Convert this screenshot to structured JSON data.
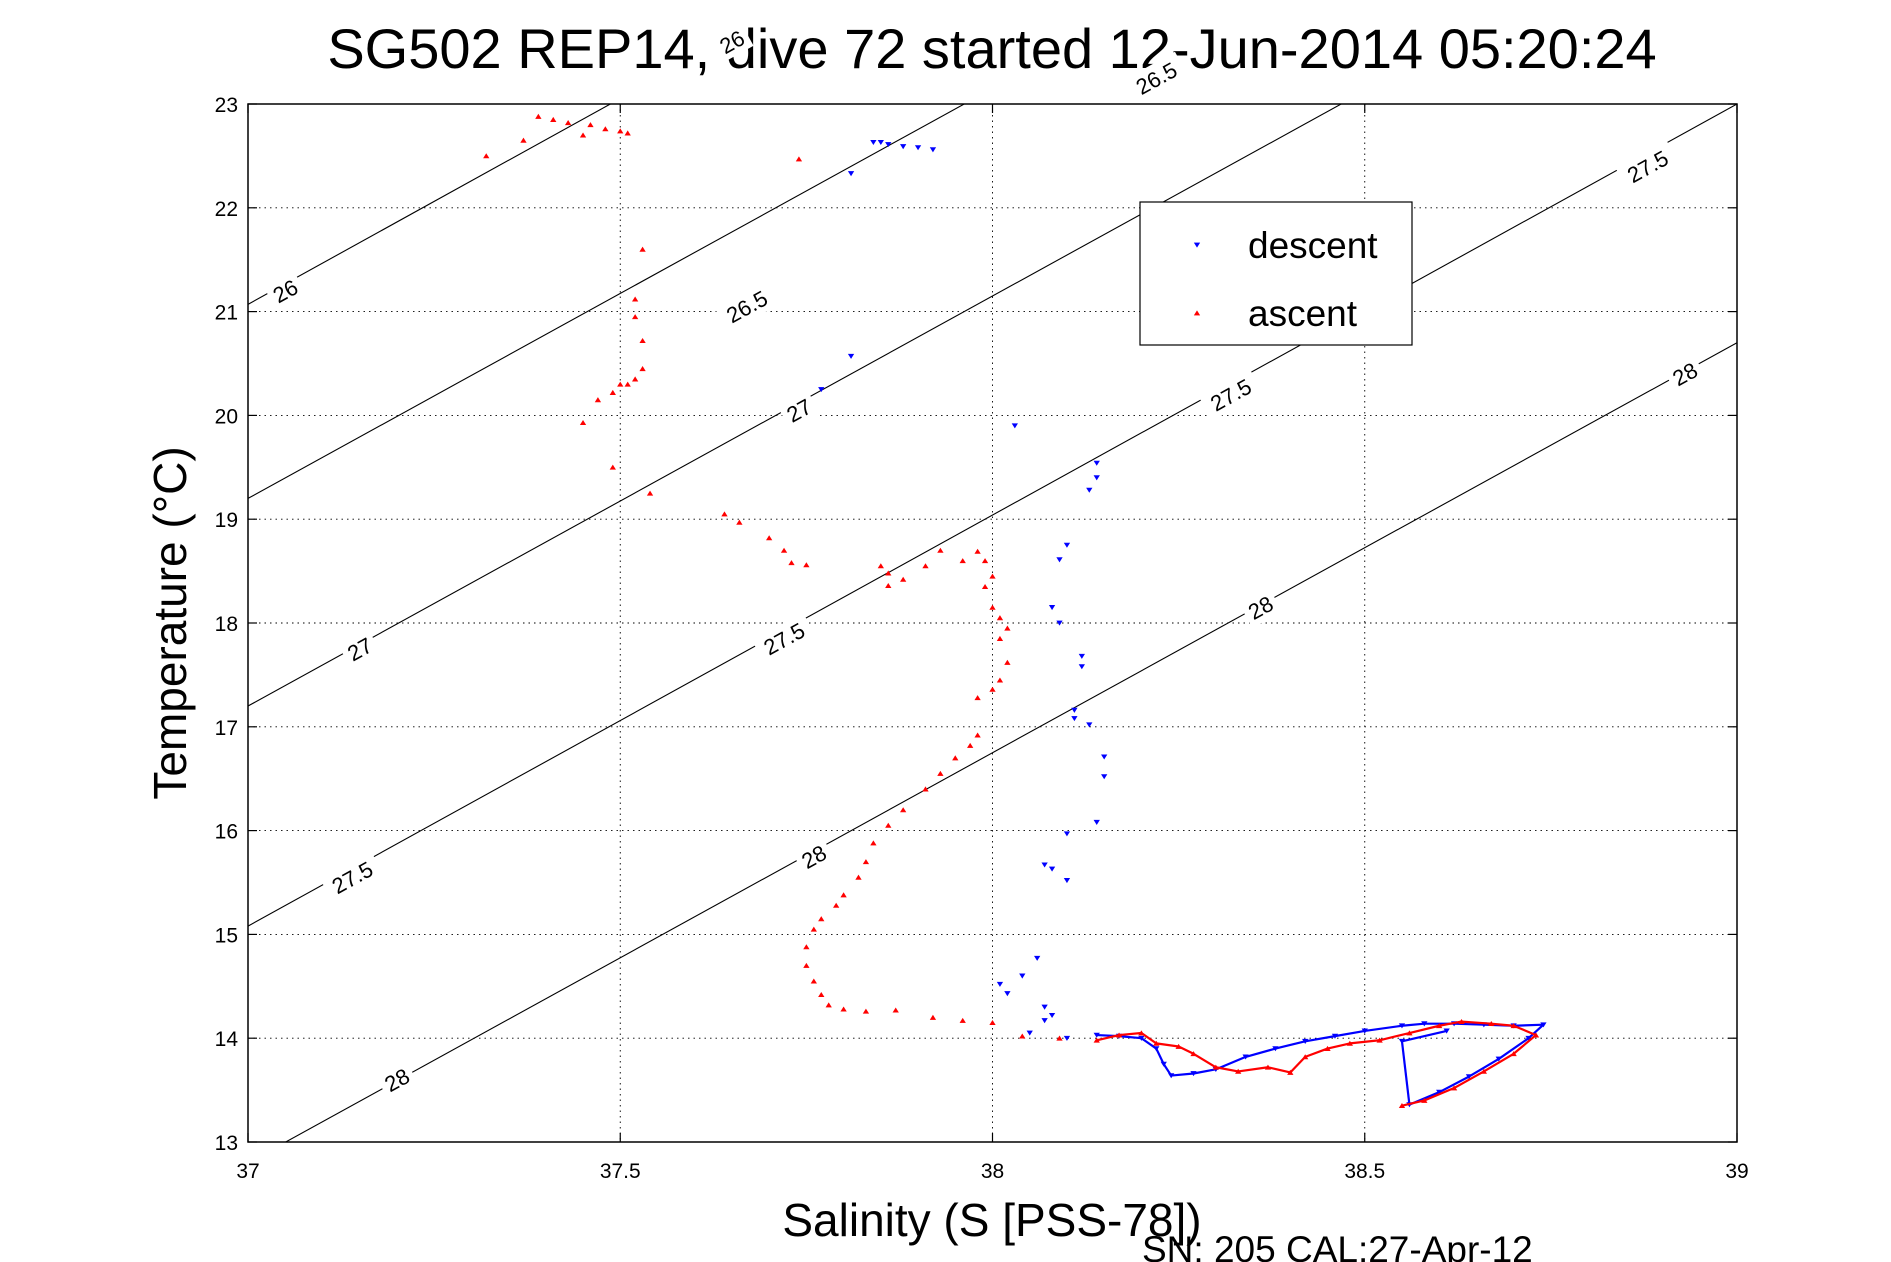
{
  "chart_data": {
    "type": "scatter",
    "title": "SG502 REP14, dive 72 started 12-Jun-2014 05:20:24",
    "xlabel": "Salinity (S [PSS-78])",
    "ylabel": "Temperature (°C)",
    "xlim": [
      37,
      39
    ],
    "ylim": [
      13,
      23
    ],
    "xticks": [
      37,
      37.5,
      38,
      38.5,
      39
    ],
    "xtick_labels": [
      "37",
      "37.5",
      "38",
      "38.5",
      "39"
    ],
    "yticks": [
      13,
      14,
      15,
      16,
      17,
      18,
      19,
      20,
      21,
      22,
      23
    ],
    "ytick_labels": [
      "13",
      "14",
      "15",
      "16",
      "17",
      "18",
      "19",
      "20",
      "21",
      "22",
      "23"
    ],
    "grid": true,
    "legend_position": "top-right",
    "footer_note": "SN: 205  CAL:27-Apr-12",
    "contours": [
      {
        "label": "26",
        "line": [
          [
            37,
            21.07
          ],
          [
            39,
            29.0
          ]
        ],
        "labels_at": [
          [
            37.05,
            21.2
          ],
          [
            37.65,
            23.6
          ]
        ]
      },
      {
        "label": "26.5",
        "line": [
          [
            37,
            19.2
          ],
          [
            39,
            27.1
          ]
        ],
        "labels_at": [
          [
            37.67,
            21.05
          ],
          [
            38.22,
            23.25
          ]
        ]
      },
      {
        "label": "27",
        "line": [
          [
            37,
            17.2
          ],
          [
            39,
            25.1
          ]
        ],
        "labels_at": [
          [
            37.15,
            17.75
          ],
          [
            37.74,
            20.05
          ],
          [
            38.93,
            24.8
          ]
        ]
      },
      {
        "label": "27.5",
        "line": [
          [
            37,
            15.08
          ],
          [
            39,
            23.0
          ]
        ],
        "labels_at": [
          [
            37.14,
            15.55
          ],
          [
            37.72,
            17.85
          ],
          [
            38.32,
            20.2
          ],
          [
            38.88,
            22.4
          ]
        ]
      },
      {
        "label": "28",
        "line": [
          [
            37,
            12.8
          ],
          [
            39,
            20.7
          ]
        ],
        "labels_at": [
          [
            37.2,
            13.6
          ],
          [
            37.76,
            15.75
          ],
          [
            38.36,
            18.15
          ],
          [
            38.93,
            20.4
          ]
        ]
      }
    ],
    "series": [
      {
        "name": "descent",
        "marker": "triangle-down",
        "color": "#0000ff",
        "points": [
          [
            37.84,
            22.63
          ],
          [
            37.85,
            22.63
          ],
          [
            37.86,
            22.61
          ],
          [
            37.88,
            22.59
          ],
          [
            37.9,
            22.58
          ],
          [
            37.92,
            22.56
          ],
          [
            37.81,
            22.33
          ],
          [
            37.81,
            20.57
          ],
          [
            37.77,
            20.25
          ],
          [
            38.03,
            19.9
          ],
          [
            38.14,
            19.54
          ],
          [
            38.14,
            19.4
          ],
          [
            38.13,
            19.28
          ],
          [
            38.1,
            18.75
          ],
          [
            38.09,
            18.61
          ],
          [
            38.08,
            18.15
          ],
          [
            38.09,
            18.0
          ],
          [
            38.12,
            17.68
          ],
          [
            38.12,
            17.58
          ],
          [
            38.11,
            17.16
          ],
          [
            38.11,
            17.08
          ],
          [
            38.13,
            17.02
          ],
          [
            38.15,
            16.71
          ],
          [
            38.15,
            16.52
          ],
          [
            38.14,
            16.08
          ],
          [
            38.1,
            15.97
          ],
          [
            38.07,
            15.67
          ],
          [
            38.08,
            15.63
          ],
          [
            38.1,
            15.52
          ],
          [
            38.06,
            14.77
          ],
          [
            38.04,
            14.6
          ],
          [
            38.01,
            14.52
          ],
          [
            38.02,
            14.43
          ],
          [
            38.07,
            14.3
          ],
          [
            38.08,
            14.22
          ],
          [
            38.07,
            14.17
          ],
          [
            38.05,
            14.05
          ],
          [
            38.1,
            14.0
          ],
          [
            38.14,
            14.03
          ],
          [
            38.17,
            14.02
          ],
          [
            38.2,
            14.0
          ],
          [
            38.22,
            13.9
          ],
          [
            38.23,
            13.75
          ],
          [
            38.24,
            13.64
          ],
          [
            38.27,
            13.66
          ],
          [
            38.3,
            13.7
          ],
          [
            38.34,
            13.82
          ],
          [
            38.38,
            13.9
          ],
          [
            38.42,
            13.97
          ],
          [
            38.46,
            14.02
          ],
          [
            38.5,
            14.07
          ],
          [
            38.55,
            14.12
          ],
          [
            38.58,
            14.14
          ],
          [
            38.62,
            14.14
          ],
          [
            38.66,
            14.13
          ],
          [
            38.7,
            14.12
          ],
          [
            38.74,
            14.13
          ],
          [
            38.72,
            14.0
          ],
          [
            38.68,
            13.8
          ],
          [
            38.64,
            13.63
          ],
          [
            38.6,
            13.48
          ],
          [
            38.56,
            13.36
          ],
          [
            38.55,
            13.97
          ],
          [
            38.61,
            14.07
          ]
        ]
      },
      {
        "name": "ascent",
        "marker": "triangle-up",
        "color": "#ff0000",
        "points": [
          [
            37.32,
            22.5
          ],
          [
            37.37,
            22.65
          ],
          [
            37.39,
            22.88
          ],
          [
            37.41,
            22.85
          ],
          [
            37.43,
            22.82
          ],
          [
            37.45,
            22.7
          ],
          [
            37.46,
            22.8
          ],
          [
            37.48,
            22.76
          ],
          [
            37.5,
            22.74
          ],
          [
            37.51,
            22.72
          ],
          [
            37.74,
            22.47
          ],
          [
            37.53,
            21.6
          ],
          [
            37.52,
            21.12
          ],
          [
            37.52,
            20.95
          ],
          [
            37.53,
            20.72
          ],
          [
            37.53,
            20.45
          ],
          [
            37.52,
            20.35
          ],
          [
            37.51,
            20.3
          ],
          [
            37.5,
            20.3
          ],
          [
            37.49,
            20.22
          ],
          [
            37.47,
            20.15
          ],
          [
            37.45,
            19.93
          ],
          [
            37.49,
            19.5
          ],
          [
            37.54,
            19.25
          ],
          [
            37.64,
            19.05
          ],
          [
            37.66,
            18.97
          ],
          [
            37.7,
            18.82
          ],
          [
            37.72,
            18.7
          ],
          [
            37.73,
            18.58
          ],
          [
            37.75,
            18.56
          ],
          [
            37.85,
            18.55
          ],
          [
            37.86,
            18.48
          ],
          [
            37.88,
            18.42
          ],
          [
            37.86,
            18.36
          ],
          [
            37.91,
            18.55
          ],
          [
            37.93,
            18.7
          ],
          [
            37.96,
            18.6
          ],
          [
            37.98,
            18.69
          ],
          [
            37.99,
            18.6
          ],
          [
            38.0,
            18.45
          ],
          [
            37.99,
            18.35
          ],
          [
            38.0,
            18.15
          ],
          [
            38.01,
            18.05
          ],
          [
            38.02,
            17.95
          ],
          [
            38.01,
            17.85
          ],
          [
            38.02,
            17.62
          ],
          [
            38.01,
            17.45
          ],
          [
            38.0,
            17.36
          ],
          [
            37.98,
            17.28
          ],
          [
            37.98,
            16.92
          ],
          [
            37.97,
            16.82
          ],
          [
            37.95,
            16.7
          ],
          [
            37.93,
            16.55
          ],
          [
            37.91,
            16.4
          ],
          [
            37.88,
            16.2
          ],
          [
            37.86,
            16.05
          ],
          [
            37.84,
            15.88
          ],
          [
            37.83,
            15.7
          ],
          [
            37.82,
            15.55
          ],
          [
            37.8,
            15.38
          ],
          [
            37.79,
            15.28
          ],
          [
            37.77,
            15.15
          ],
          [
            37.76,
            15.05
          ],
          [
            37.75,
            14.88
          ],
          [
            37.75,
            14.7
          ],
          [
            37.76,
            14.55
          ],
          [
            37.77,
            14.42
          ],
          [
            37.78,
            14.32
          ],
          [
            37.8,
            14.28
          ],
          [
            37.83,
            14.26
          ],
          [
            37.87,
            14.27
          ],
          [
            37.92,
            14.2
          ],
          [
            37.96,
            14.17
          ],
          [
            38.0,
            14.15
          ],
          [
            38.04,
            14.02
          ],
          [
            38.09,
            14.0
          ],
          [
            38.14,
            13.98
          ],
          [
            38.17,
            14.03
          ],
          [
            38.2,
            14.05
          ],
          [
            38.22,
            13.95
          ],
          [
            38.25,
            13.92
          ],
          [
            38.27,
            13.85
          ],
          [
            38.3,
            13.72
          ],
          [
            38.33,
            13.68
          ],
          [
            38.37,
            13.72
          ],
          [
            38.4,
            13.67
          ],
          [
            38.42,
            13.82
          ],
          [
            38.45,
            13.9
          ],
          [
            38.48,
            13.95
          ],
          [
            38.52,
            13.98
          ],
          [
            38.56,
            14.05
          ],
          [
            38.6,
            14.12
          ],
          [
            38.63,
            14.16
          ],
          [
            38.67,
            14.14
          ],
          [
            38.7,
            14.12
          ],
          [
            38.73,
            14.03
          ],
          [
            38.7,
            13.85
          ],
          [
            38.66,
            13.68
          ],
          [
            38.62,
            13.52
          ],
          [
            38.58,
            13.4
          ],
          [
            38.55,
            13.35
          ]
        ]
      }
    ]
  }
}
